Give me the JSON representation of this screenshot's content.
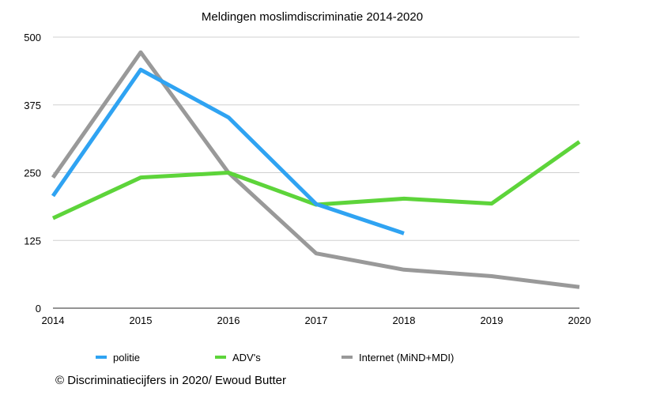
{
  "chart_data": {
    "type": "line",
    "title": "Meldingen moslimdiscriminatie 2014-2020",
    "xlabel": "",
    "ylabel": "",
    "x": [
      "2014",
      "2015",
      "2016",
      "2017",
      "2018",
      "2019",
      "2020"
    ],
    "ylim": [
      0,
      500
    ],
    "yticks": [
      0,
      125,
      250,
      375,
      500
    ],
    "grid": true,
    "legend": "bottom",
    "series": [
      {
        "name": "politie",
        "color": "#2fa3f2",
        "values": [
          207,
          440,
          352,
          192,
          138,
          null,
          null
        ]
      },
      {
        "name": "ADV's",
        "color": "#5dd43a",
        "values": [
          166,
          241,
          250,
          191,
          202,
          193,
          307
        ]
      },
      {
        "name": "Internet (MiND+MDI)",
        "color": "#999999",
        "values": [
          241,
          472,
          250,
          101,
          71,
          59,
          39
        ]
      }
    ]
  },
  "credit": "© Discriminatiecijfers in 2020/ Ewoud Butter"
}
